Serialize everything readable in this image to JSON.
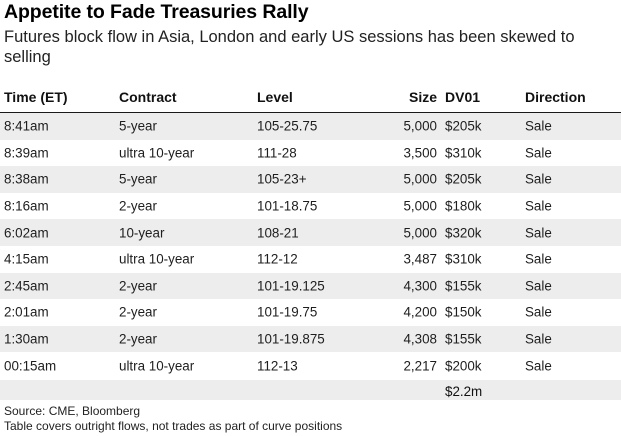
{
  "title": "Appetite to Fade Treasuries Rally",
  "subtitle": "Futures block flow in Asia, London and early US sessions has been skewed to selling",
  "table": {
    "headers": {
      "time": "Time (ET)",
      "contract": "Contract",
      "level": "Level",
      "size": "Size",
      "dv01": "DV01",
      "direction": "Direction"
    },
    "rows": [
      {
        "time": "8:41am",
        "contract": "5-year",
        "level": "105-25.75",
        "size": "5,000",
        "dv01": "$205k",
        "direction": "Sale"
      },
      {
        "time": "8:39am",
        "contract": "ultra 10-year",
        "level": "111-28",
        "size": "3,500",
        "dv01": "$310k",
        "direction": "Sale"
      },
      {
        "time": "8:38am",
        "contract": "5-year",
        "level": "105-23+",
        "size": "5,000",
        "dv01": "$205k",
        "direction": "Sale"
      },
      {
        "time": "8:16am",
        "contract": "2-year",
        "level": "101-18.75",
        "size": "5,000",
        "dv01": "$180k",
        "direction": "Sale"
      },
      {
        "time": "6:02am",
        "contract": "10-year",
        "level": "108-21",
        "size": "5,000",
        "dv01": "$320k",
        "direction": "Sale"
      },
      {
        "time": "4:15am",
        "contract": "ultra 10-year",
        "level": "112-12",
        "size": "3,487",
        "dv01": "$310k",
        "direction": "Sale"
      },
      {
        "time": "2:45am",
        "contract": "2-year",
        "level": "101-19.125",
        "size": "4,300",
        "dv01": "$155k",
        "direction": "Sale"
      },
      {
        "time": "2:01am",
        "contract": "2-year",
        "level": "101-19.75",
        "size": "4,200",
        "dv01": "$150k",
        "direction": "Sale"
      },
      {
        "time": "1:30am",
        "contract": "2-year",
        "level": "101-19.875",
        "size": "4,308",
        "dv01": "$155k",
        "direction": "Sale"
      },
      {
        "time": "00:15am",
        "contract": "ultra 10-year",
        "level": "112-13",
        "size": "2,217",
        "dv01": "$200k",
        "direction": "Sale"
      }
    ],
    "total_dv01": "$2.2m"
  },
  "footer": {
    "source": "Source: CME, Bloomberg",
    "note": "Table covers outright flows, not trades as part of curve positions"
  },
  "colors": {
    "row_alt_background": "#ededed",
    "header_rule": "#1a1a1a"
  }
}
